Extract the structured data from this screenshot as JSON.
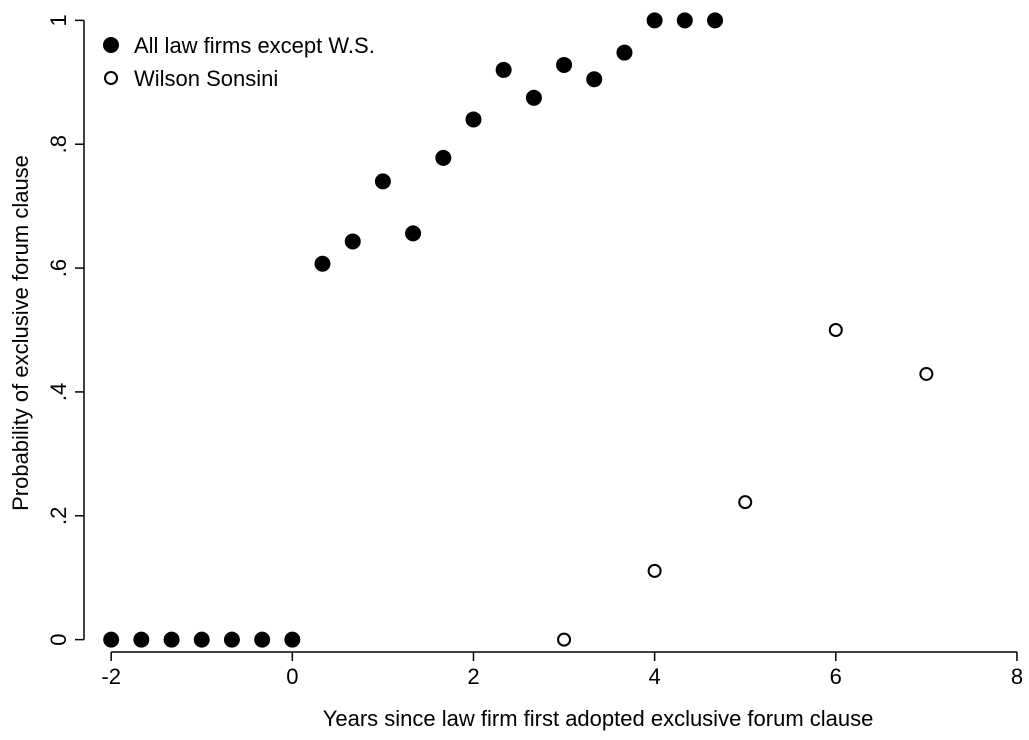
{
  "chart_data": {
    "type": "scatter",
    "xlabel": "Years since law firm first adopted exclusive forum clause",
    "ylabel": "Probability of exclusive forum clause",
    "xlim": [
      -2.3,
      8.1
    ],
    "ylim": [
      -0.02,
      1.02
    ],
    "x_ticks": [
      -2,
      0,
      2,
      4,
      6,
      8
    ],
    "x_tick_labels": [
      "-2",
      "0",
      "2",
      "4",
      "6",
      "8"
    ],
    "y_ticks": [
      0,
      0.2,
      0.4,
      0.6,
      0.8,
      1
    ],
    "y_tick_labels": [
      "0",
      ".2",
      ".4",
      ".6",
      ".8",
      "1"
    ],
    "grid": false,
    "legend_position": "top-left",
    "series": [
      {
        "name": "All law firms except W.S.",
        "marker": "filled-circle",
        "color": "#000000",
        "x": [
          -2,
          -1.667,
          -1.333,
          -1,
          -0.667,
          -0.333,
          0,
          0.333,
          0.667,
          1,
          1.333,
          1.667,
          2,
          2.333,
          2.667,
          3,
          3.333,
          3.667,
          4,
          4.333,
          4.667
        ],
        "y": [
          0,
          0,
          0,
          0,
          0,
          0,
          0,
          0.607,
          0.643,
          0.74,
          0.656,
          0.778,
          0.84,
          0.92,
          0.875,
          0.928,
          0.905,
          0.948,
          1,
          1,
          1
        ]
      },
      {
        "name": "Wilson Sonsini",
        "marker": "hollow-circle",
        "color": "#000000",
        "x": [
          3,
          4,
          5,
          6,
          7
        ],
        "y": [
          0,
          0.111,
          0.222,
          0.5,
          0.429
        ]
      }
    ]
  }
}
